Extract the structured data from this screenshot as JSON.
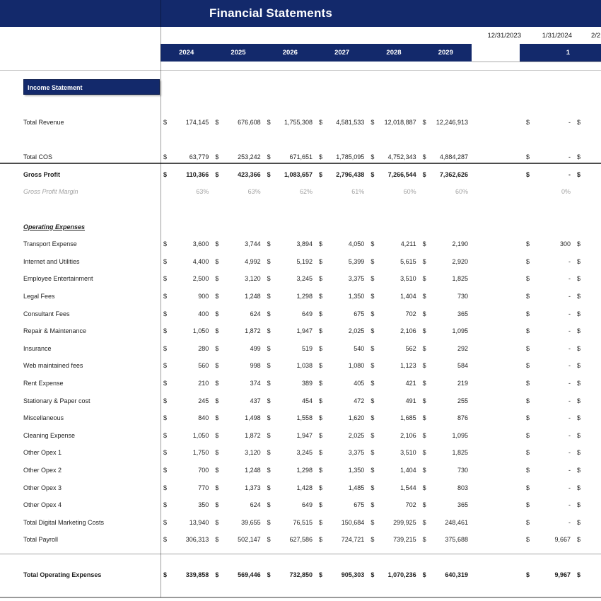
{
  "title": "Financial Statements",
  "colors": {
    "navy": "#13296B",
    "grid_light": "#c7c7c7",
    "grid_dark": "#4d4d4d",
    "muted_text": "#a3a3a3"
  },
  "currency_symbol": "$",
  "dates": {
    "prev": "12/31/2023",
    "current": "1/31/2024",
    "next_partial": "2/2"
  },
  "year_headers": [
    "2024",
    "2025",
    "2026",
    "2027",
    "2028",
    "2029"
  ],
  "month_header": "1",
  "rows": [
    {
      "kind": "section_box",
      "label": "Income Statement"
    },
    {
      "kind": "blank"
    },
    {
      "kind": "money",
      "label": "Total Revenue",
      "style": "normal",
      "years": [
        "174,145",
        "676,608",
        "1,755,308",
        "4,581,533",
        "12,018,887",
        "12,246,913"
      ],
      "month": "-"
    },
    {
      "kind": "blank"
    },
    {
      "kind": "money",
      "label": "Total COS",
      "style": "normal",
      "years": [
        "63,779",
        "253,242",
        "671,651",
        "1,785,095",
        "4,752,343",
        "4,884,287"
      ],
      "month": "-"
    },
    {
      "kind": "money",
      "label": "Gross Profit",
      "style": "bold",
      "years": [
        "110,366",
        "423,366",
        "1,083,657",
        "2,796,438",
        "7,266,544",
        "7,362,626"
      ],
      "month": "-"
    },
    {
      "kind": "percent",
      "label": "Gross Profit Margin",
      "years": [
        "63%",
        "63%",
        "62%",
        "61%",
        "60%",
        "60%"
      ],
      "month": "0%"
    },
    {
      "kind": "blank"
    },
    {
      "kind": "subheader",
      "label": "Operating Expenses"
    },
    {
      "kind": "money",
      "label": "Transport Expense",
      "years": [
        "3,600",
        "3,744",
        "3,894",
        "4,050",
        "4,211",
        "2,190"
      ],
      "month": "300"
    },
    {
      "kind": "money",
      "label": "Internet and Utilities",
      "years": [
        "4,400",
        "4,992",
        "5,192",
        "5,399",
        "5,615",
        "2,920"
      ],
      "month": "-"
    },
    {
      "kind": "money",
      "label": "Employee Entertainment",
      "years": [
        "2,500",
        "3,120",
        "3,245",
        "3,375",
        "3,510",
        "1,825"
      ],
      "month": "-"
    },
    {
      "kind": "money",
      "label": "Legal Fees",
      "years": [
        "900",
        "1,248",
        "1,298",
        "1,350",
        "1,404",
        "730"
      ],
      "month": "-"
    },
    {
      "kind": "money",
      "label": "Consultant Fees",
      "years": [
        "400",
        "624",
        "649",
        "675",
        "702",
        "365"
      ],
      "month": "-"
    },
    {
      "kind": "money",
      "label": "Repair & Maintenance",
      "years": [
        "1,050",
        "1,872",
        "1,947",
        "2,025",
        "2,106",
        "1,095"
      ],
      "month": "-"
    },
    {
      "kind": "money",
      "label": "Insurance",
      "years": [
        "280",
        "499",
        "519",
        "540",
        "562",
        "292"
      ],
      "month": "-"
    },
    {
      "kind": "money",
      "label": "Web maintained fees",
      "years": [
        "560",
        "998",
        "1,038",
        "1,080",
        "1,123",
        "584"
      ],
      "month": "-"
    },
    {
      "kind": "money",
      "label": "Rent Expense",
      "years": [
        "210",
        "374",
        "389",
        "405",
        "421",
        "219"
      ],
      "month": "-"
    },
    {
      "kind": "money",
      "label": "Stationary & Paper cost",
      "years": [
        "245",
        "437",
        "454",
        "472",
        "491",
        "255"
      ],
      "month": "-"
    },
    {
      "kind": "money",
      "label": "Miscellaneous",
      "years": [
        "840",
        "1,498",
        "1,558",
        "1,620",
        "1,685",
        "876"
      ],
      "month": "-"
    },
    {
      "kind": "money",
      "label": "Cleaning Expense",
      "years": [
        "1,050",
        "1,872",
        "1,947",
        "2,025",
        "2,106",
        "1,095"
      ],
      "month": "-"
    },
    {
      "kind": "money",
      "label": "Other Opex 1",
      "years": [
        "1,750",
        "3,120",
        "3,245",
        "3,375",
        "3,510",
        "1,825"
      ],
      "month": "-"
    },
    {
      "kind": "money",
      "label": "Other Opex 2",
      "years": [
        "700",
        "1,248",
        "1,298",
        "1,350",
        "1,404",
        "730"
      ],
      "month": "-"
    },
    {
      "kind": "money",
      "label": "Other Opex 3",
      "years": [
        "770",
        "1,373",
        "1,428",
        "1,485",
        "1,544",
        "803"
      ],
      "month": "-"
    },
    {
      "kind": "money",
      "label": "Other Opex 4",
      "years": [
        "350",
        "624",
        "649",
        "675",
        "702",
        "365"
      ],
      "month": "-"
    },
    {
      "kind": "money",
      "label": "Total Digital Marketing Costs",
      "years": [
        "13,940",
        "39,655",
        "76,515",
        "150,684",
        "299,925",
        "248,461"
      ],
      "month": "-"
    },
    {
      "kind": "money",
      "label": "Total Payroll",
      "years": [
        "306,313",
        "502,147",
        "627,586",
        "724,721",
        "739,215",
        "375,688"
      ],
      "month": "9,667"
    },
    {
      "kind": "blank"
    },
    {
      "kind": "money",
      "label": "Total Operating Expenses",
      "style": "bold",
      "years": [
        "339,858",
        "569,446",
        "732,850",
        "905,303",
        "1,070,236",
        "640,319"
      ],
      "month": "9,967"
    }
  ]
}
